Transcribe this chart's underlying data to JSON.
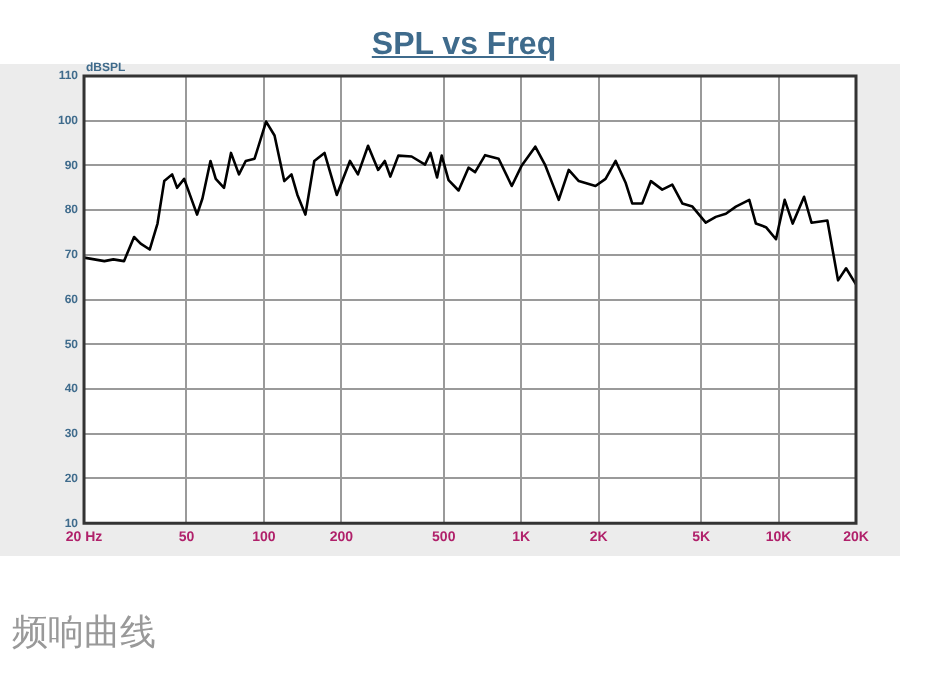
{
  "chart_data": {
    "type": "line",
    "title": "SPL vs Freq",
    "ylabel": "dBSPL",
    "log": "x",
    "x": [
      20,
      24,
      26,
      28.6,
      31.3,
      33.2,
      36,
      38.6,
      41,
      44,
      46,
      49,
      55,
      57.7,
      62,
      65,
      70,
      74.5,
      80,
      85,
      92,
      102,
      110,
      120,
      128,
      135,
      145,
      157,
      172,
      192,
      216,
      232,
      254,
      278,
      295,
      310,
      333,
      375,
      423,
      444,
      471,
      491,
      522,
      571,
      624,
      662,
      724,
      817,
      919,
      1005,
      1134,
      1241,
      1399,
      1530,
      1674,
      1944,
      2127,
      2328,
      2543,
      2700,
      2953,
      3192,
      3532,
      3864,
      4228,
      4626,
      5212,
      5703,
      6241,
      6828,
      7696,
      8166,
      8935,
      9776,
      10566,
      11353,
      12570,
      13430,
      15480,
      17030,
      18300,
      20000
    ],
    "series": [
      {
        "color": "#000000",
        "values": [
          69.4,
          68.6,
          69,
          68.6,
          74,
          72.5,
          71.2,
          77,
          86.5,
          88,
          85,
          87,
          79,
          82.6,
          91,
          87,
          85,
          92.8,
          88,
          91,
          91.5,
          99.8,
          96.7,
          86.5,
          88,
          83.4,
          79,
          91,
          92.8,
          83.4,
          91,
          88,
          94.4,
          89,
          91,
          87.5,
          92.2,
          92,
          90.2,
          92.8,
          87.3,
          92.2,
          86.7,
          84.4,
          89.5,
          88.5,
          92.3,
          91.5,
          85.4,
          90,
          94.2,
          90,
          82.3,
          89,
          86.5,
          85.4,
          87,
          91,
          86.2,
          81.5,
          81.5,
          86.5,
          84.6,
          85.7,
          81.5,
          80.8,
          77.2,
          78.5,
          79.2,
          80.8,
          82.3,
          77,
          76.2,
          73.5,
          82.3,
          77,
          83,
          77.2,
          77.7,
          64.3,
          67,
          63.4
        ]
      }
    ],
    "xlim": [
      20,
      20000
    ],
    "xticks": [
      {
        "value": 20,
        "label": "20 Hz"
      },
      50,
      100,
      200,
      500,
      {
        "value": 1000,
        "label": "1K"
      },
      {
        "value": 2000,
        "label": "2K"
      },
      {
        "value": 5000,
        "label": "5K"
      },
      {
        "value": 10000,
        "label": "10K"
      },
      {
        "value": 20000,
        "label": "20K"
      }
    ],
    "ylim": [
      10,
      110
    ],
    "yticks": [
      10,
      20,
      30,
      40,
      50,
      60,
      70,
      80,
      90,
      100,
      110
    ],
    "grid": true,
    "legend": false,
    "marker": "none",
    "line_style": "solid",
    "annotations": [
      "频响曲线"
    ]
  }
}
